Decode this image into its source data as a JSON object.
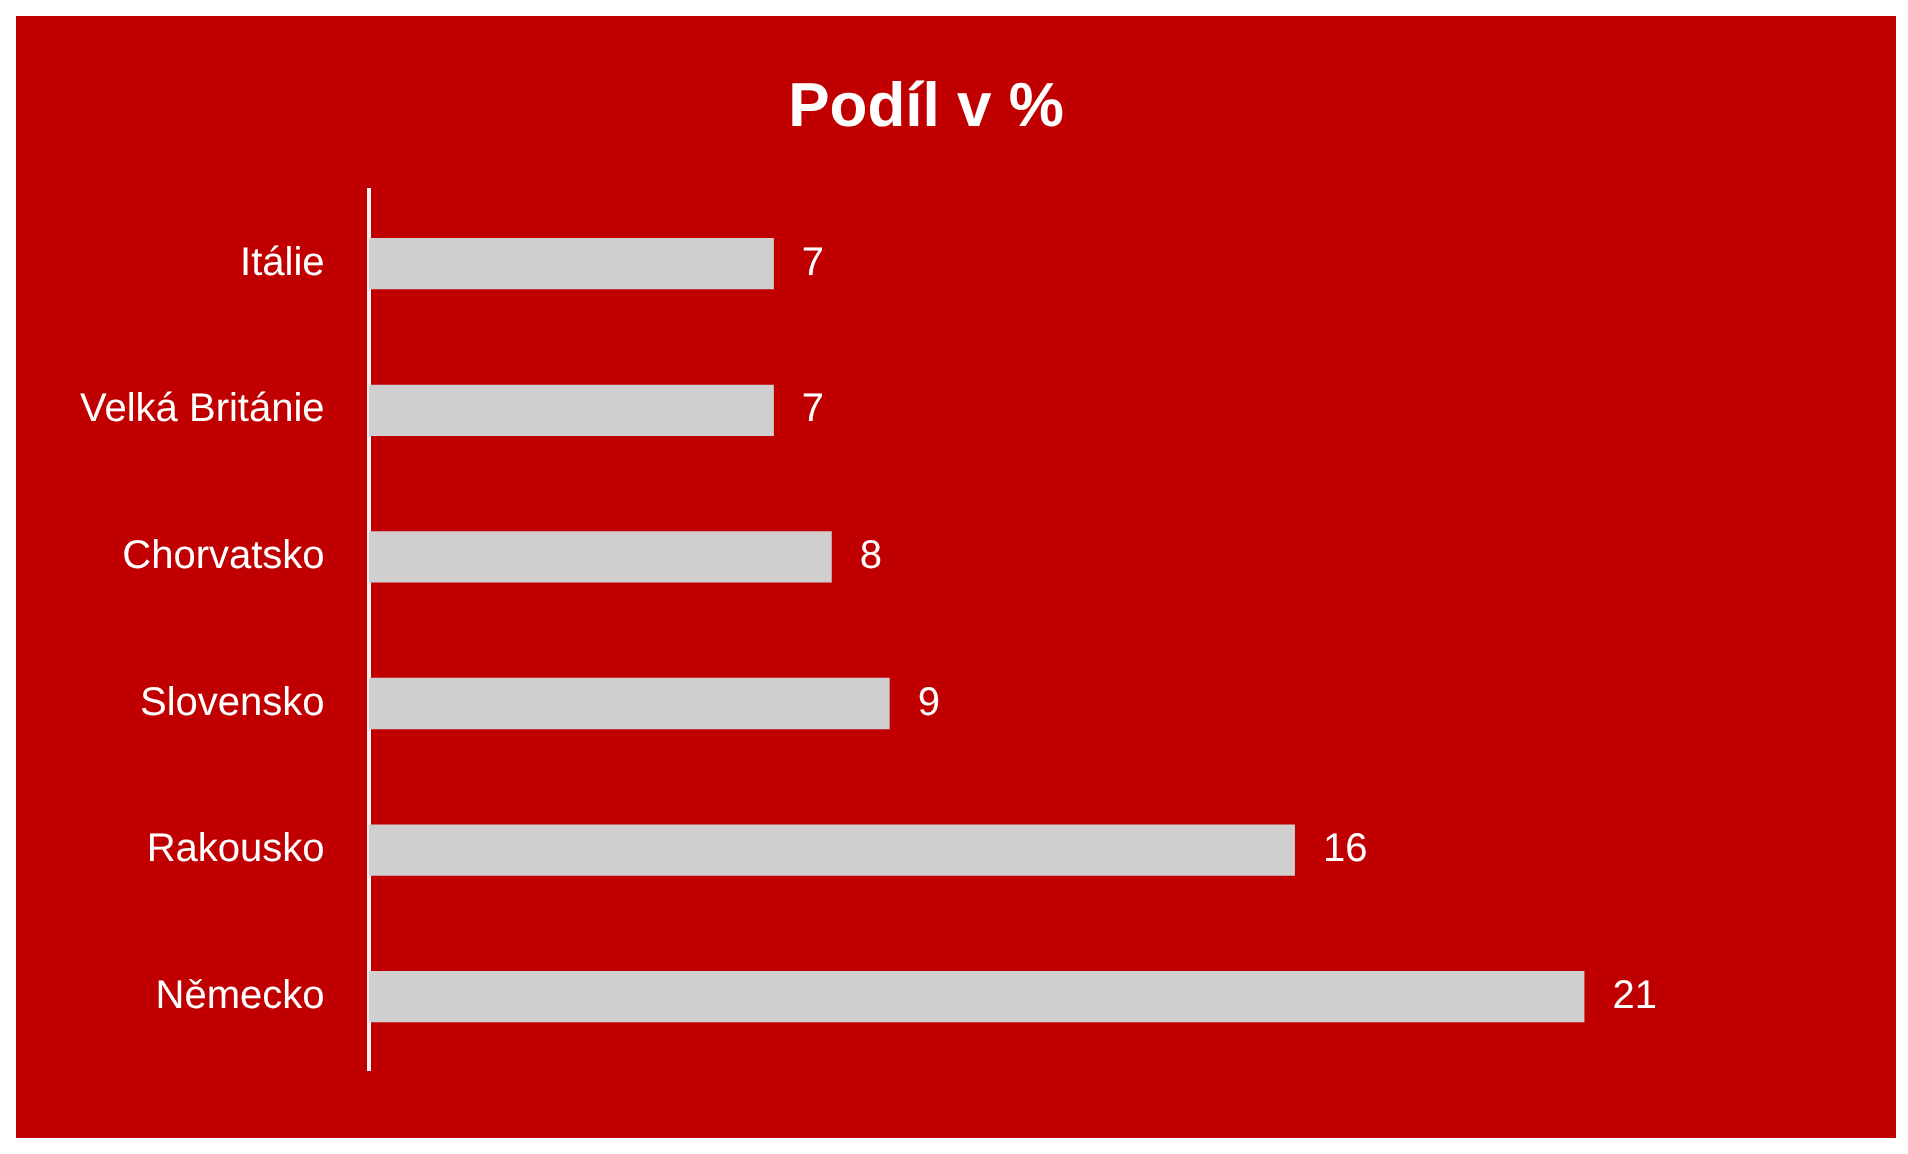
{
  "chart_data": {
    "type": "bar",
    "orientation": "horizontal",
    "title": "Podíl v %",
    "categories": [
      "Itálie",
      "Velká Británie",
      "Chorvatsko",
      "Slovensko",
      "Rakousko",
      "Německo"
    ],
    "values": [
      7,
      7,
      8,
      9,
      16,
      21
    ],
    "color": "#d0cece",
    "data_labels": true,
    "grid": false,
    "legend": false,
    "tick_labels": "y"
  }
}
